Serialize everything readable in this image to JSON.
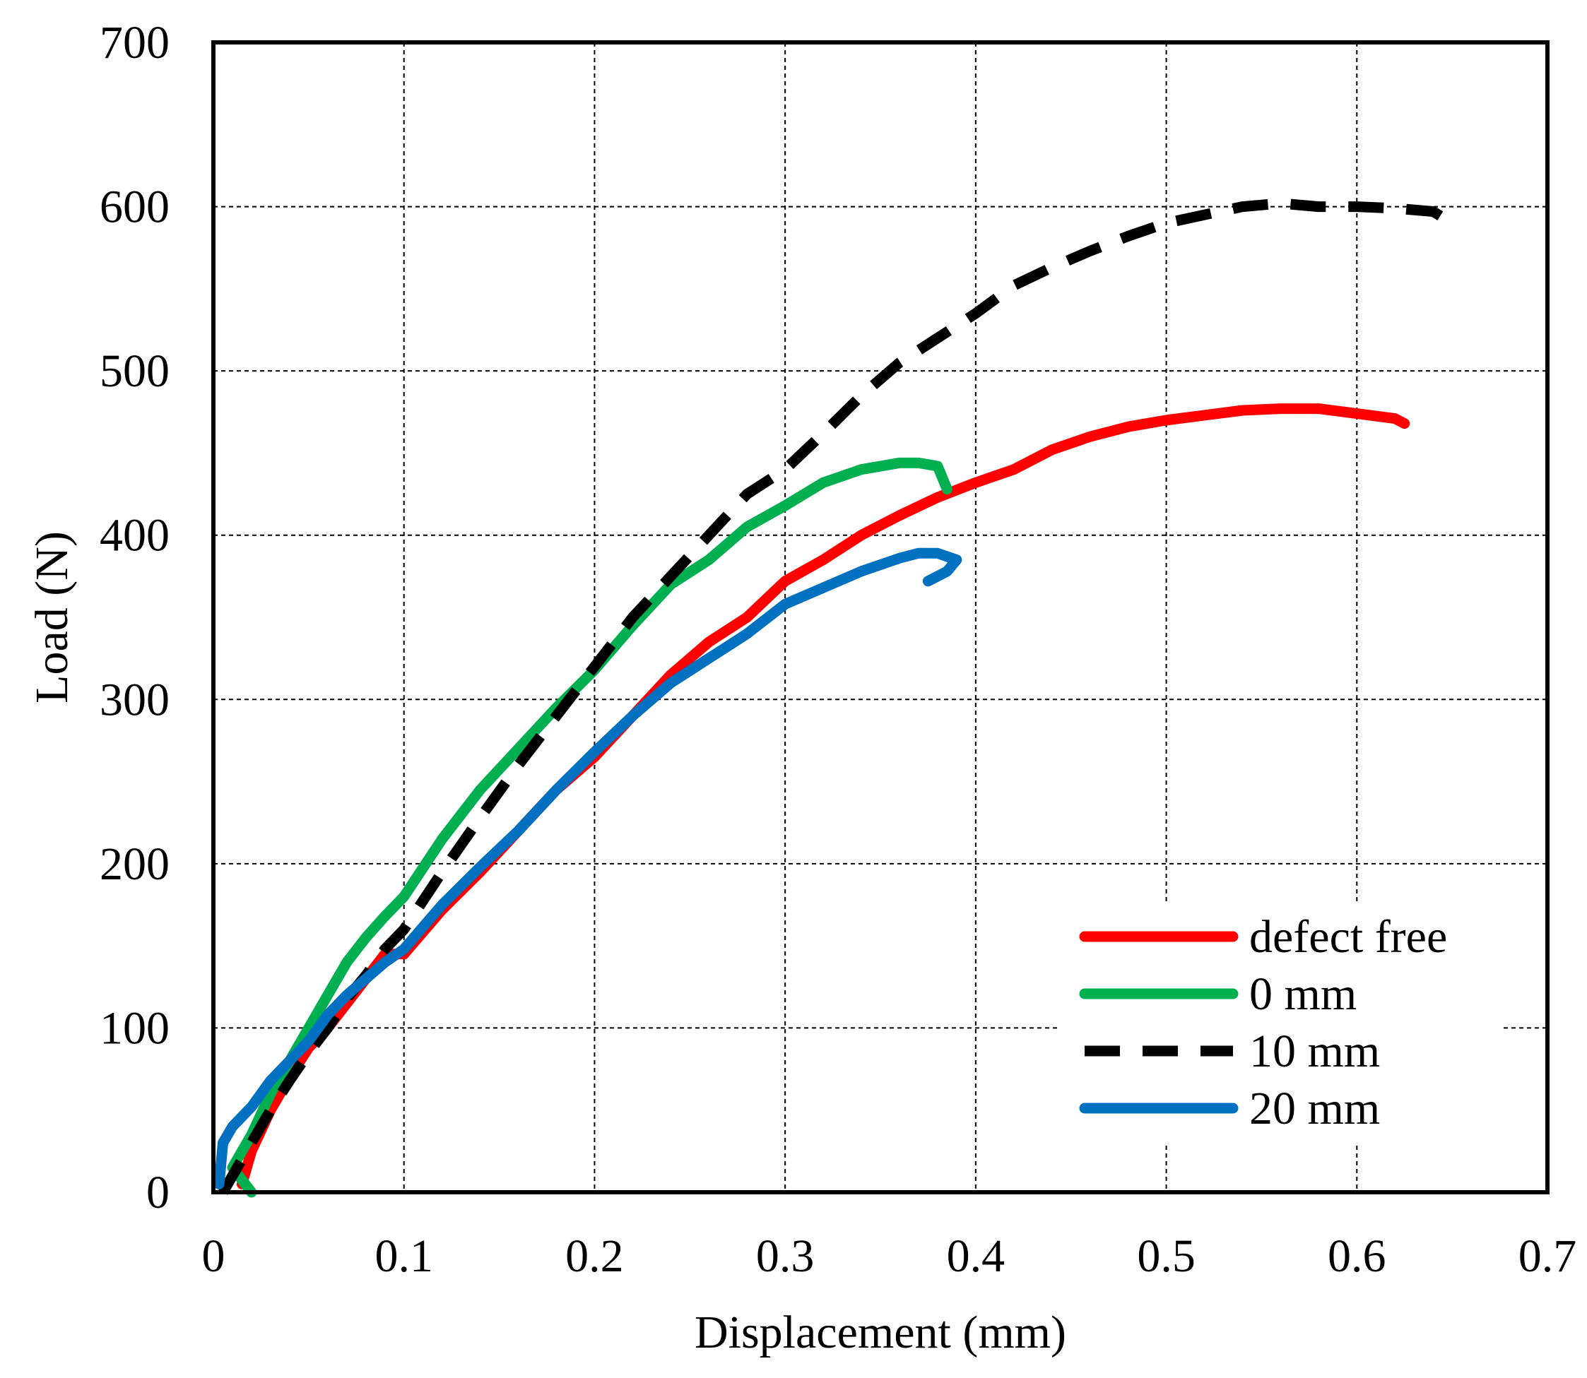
{
  "chart_data": {
    "type": "line",
    "title": "",
    "xlabel": "Displacement (mm)",
    "ylabel": "Load (N)",
    "xlim": [
      0,
      0.7
    ],
    "ylim": [
      0,
      700
    ],
    "x_ticks": [
      "0",
      "0.1",
      "0.2",
      "0.3",
      "0.4",
      "0.5",
      "0.6",
      "0.7"
    ],
    "y_ticks": [
      "0",
      "100",
      "200",
      "300",
      "400",
      "500",
      "600",
      "700"
    ],
    "x_tick_values": [
      0,
      0.1,
      0.2,
      0.3,
      0.4,
      0.5,
      0.6,
      0.7
    ],
    "y_tick_values": [
      0,
      100,
      200,
      300,
      400,
      500,
      600,
      700
    ],
    "grid": true,
    "legend_position": "bottom-right",
    "series": [
      {
        "name": "defect free",
        "color": "#ff0000",
        "style": "solid",
        "x": [
          0.015,
          0.02,
          0.03,
          0.04,
          0.05,
          0.06,
          0.07,
          0.08,
          0.09,
          0.1,
          0.12,
          0.14,
          0.16,
          0.18,
          0.2,
          0.22,
          0.24,
          0.26,
          0.28,
          0.3,
          0.32,
          0.34,
          0.36,
          0.38,
          0.4,
          0.42,
          0.44,
          0.46,
          0.48,
          0.5,
          0.52,
          0.54,
          0.56,
          0.58,
          0.6,
          0.62,
          0.625
        ],
        "y": [
          5,
          25,
          50,
          70,
          88,
          100,
          115,
          130,
          145,
          145,
          172,
          195,
          220,
          245,
          265,
          290,
          315,
          335,
          350,
          372,
          385,
          400,
          412,
          423,
          432,
          440,
          452,
          460,
          466,
          470,
          473,
          476,
          477,
          477,
          474,
          471,
          468
        ]
      },
      {
        "name": "0 mm",
        "color": "#00b050",
        "style": "solid",
        "x": [
          0.02,
          0.01,
          0.02,
          0.03,
          0.04,
          0.05,
          0.06,
          0.07,
          0.08,
          0.09,
          0.1,
          0.12,
          0.14,
          0.16,
          0.18,
          0.2,
          0.22,
          0.24,
          0.26,
          0.28,
          0.3,
          0.32,
          0.34,
          0.36,
          0.37,
          0.38,
          0.385
        ],
        "y": [
          0,
          15,
          35,
          60,
          80,
          100,
          120,
          140,
          155,
          168,
          180,
          215,
          245,
          270,
          295,
          318,
          345,
          370,
          385,
          405,
          418,
          432,
          440,
          444,
          444,
          442,
          428
        ]
      },
      {
        "name": "10 mm",
        "color": "#000000",
        "style": "dashed",
        "x": [
          0.005,
          0.01,
          0.02,
          0.03,
          0.04,
          0.05,
          0.06,
          0.07,
          0.08,
          0.09,
          0.1,
          0.12,
          0.14,
          0.16,
          0.18,
          0.2,
          0.22,
          0.24,
          0.26,
          0.28,
          0.3,
          0.32,
          0.34,
          0.36,
          0.38,
          0.4,
          0.42,
          0.44,
          0.46,
          0.48,
          0.5,
          0.52,
          0.54,
          0.56,
          0.58,
          0.6,
          0.62,
          0.64,
          0.65
        ],
        "y": [
          0,
          10,
          30,
          50,
          68,
          85,
          100,
          118,
          132,
          148,
          160,
          195,
          228,
          260,
          290,
          320,
          350,
          375,
          400,
          425,
          440,
          462,
          485,
          505,
          520,
          535,
          552,
          563,
          573,
          582,
          590,
          595,
          600,
          602,
          600,
          600,
          599,
          597,
          590
        ]
      },
      {
        "name": "20 mm",
        "color": "#0070c0",
        "style": "solid",
        "x": [
          0.003,
          0.005,
          0.01,
          0.02,
          0.03,
          0.04,
          0.05,
          0.06,
          0.07,
          0.08,
          0.09,
          0.1,
          0.12,
          0.14,
          0.16,
          0.18,
          0.2,
          0.22,
          0.24,
          0.26,
          0.28,
          0.3,
          0.32,
          0.34,
          0.36,
          0.37,
          0.38,
          0.39,
          0.385,
          0.375
        ],
        "y": [
          5,
          30,
          40,
          52,
          68,
          80,
          92,
          108,
          120,
          130,
          140,
          148,
          175,
          198,
          220,
          245,
          268,
          290,
          310,
          325,
          340,
          358,
          368,
          378,
          386,
          389,
          389,
          385,
          378,
          372
        ]
      }
    ]
  }
}
